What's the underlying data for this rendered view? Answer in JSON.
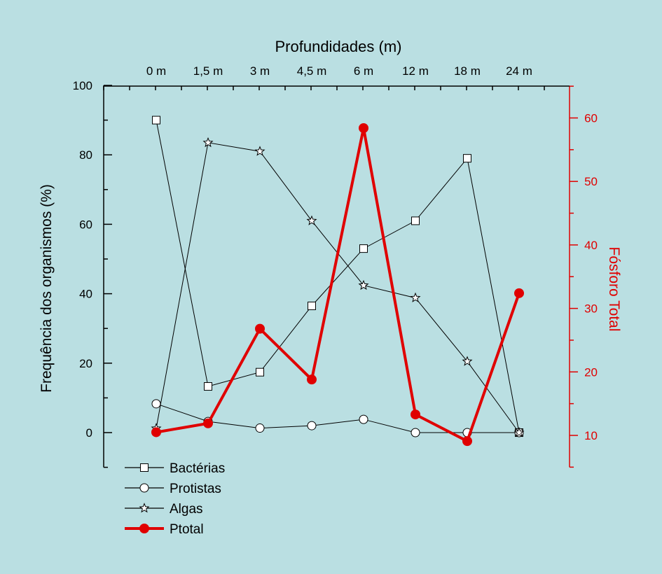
{
  "chart_data": {
    "type": "line",
    "title": "Profundidades (m)",
    "categories": [
      "0 m",
      "1,5 m",
      "3 m",
      "4,5 m",
      "6 m",
      "12 m",
      "18 m",
      "24 m"
    ],
    "ylabel": "Frequência dos organismos (%)",
    "y2label": "Fósforo Total",
    "ylim": [
      -10,
      100
    ],
    "y2lim": [
      5,
      65
    ],
    "yticks": [
      0,
      20,
      40,
      60,
      80,
      100
    ],
    "y2ticks": [
      10,
      20,
      30,
      40,
      50,
      60
    ],
    "series": [
      {
        "name": "Bactérias",
        "axis": "left",
        "marker": "square",
        "values": [
          90,
          13.3,
          17.4,
          36.5,
          53,
          61,
          79,
          0
        ]
      },
      {
        "name": "Protistas",
        "axis": "left",
        "marker": "circle",
        "values": [
          8.3,
          3.2,
          1.3,
          2,
          3.8,
          0,
          0,
          0
        ]
      },
      {
        "name": "Algas",
        "axis": "left",
        "marker": "star",
        "values": [
          1.2,
          83.5,
          81,
          61,
          42.4,
          38.8,
          20.5,
          0
        ]
      },
      {
        "name": "Ptotal",
        "axis": "right",
        "marker": "dot",
        "values": [
          10.5,
          11.9,
          26.8,
          18.8,
          58.4,
          13.3,
          9.1,
          32.4
        ]
      }
    ],
    "legend_position": "bottom-left",
    "colors": {
      "background": "#badfe2",
      "axis_left": "#000000",
      "axis_right": "#e00000",
      "ptotal": "#e00000",
      "series": "#000000"
    }
  }
}
